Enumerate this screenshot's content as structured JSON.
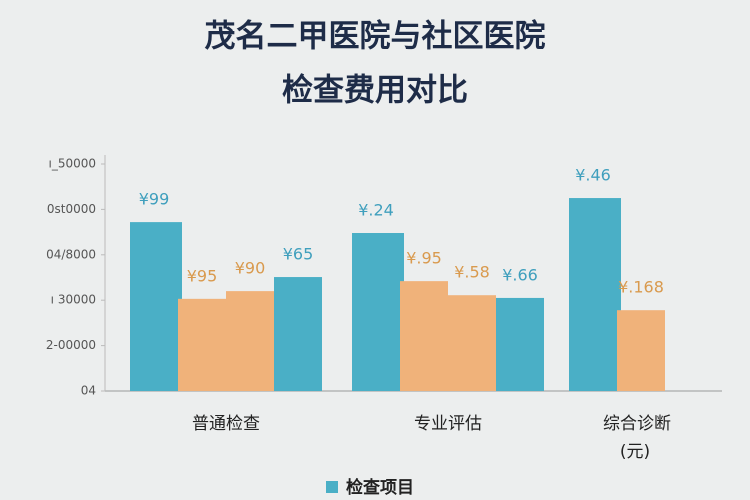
{
  "chart_data": {
    "type": "grouped-bar",
    "title_lines": [
      "茂名二甲医院与社区医院",
      "检查费用对比"
    ],
    "ylim": [
      0,
      5
    ],
    "yticks": [
      {
        "value": 0,
        "label": "04"
      },
      {
        "value": 1,
        "label": "2-00000"
      },
      {
        "value": 2,
        "label": "ı 30000"
      },
      {
        "value": 3,
        "label": "04/8000"
      },
      {
        "value": 4,
        "label": "0st0000"
      },
      {
        "value": 5,
        "label": "ı_50000"
      }
    ],
    "groups": [
      {
        "category": "普通检查",
        "values": [
          3.72,
          2.03,
          2.2,
          2.51
        ],
        "value_labels": [
          "¥99",
          "¥95",
          "¥90",
          "¥65"
        ],
        "colors": [
          "#4aafc6",
          "#f0b27a",
          "#f0b27a",
          "#4aafc6"
        ]
      },
      {
        "category": "专业评估",
        "values": [
          3.48,
          2.42,
          2.11,
          2.05
        ],
        "value_labels": [
          "¥.24",
          "¥.95",
          "¥.58",
          "¥.66"
        ],
        "colors": [
          "#4aafc6",
          "#f0b27a",
          "#f0b27a",
          "#4aafc6"
        ]
      },
      {
        "category": "综合诊断",
        "values": [
          4.25,
          1.78
        ],
        "value_labels": [
          "¥.46",
          "¥.168"
        ],
        "colors": [
          "#4aafc6",
          "#f0b27a"
        ]
      }
    ],
    "unit_note": "(元)",
    "legend": {
      "label": "检查项目",
      "color": "#4aafc6"
    }
  }
}
